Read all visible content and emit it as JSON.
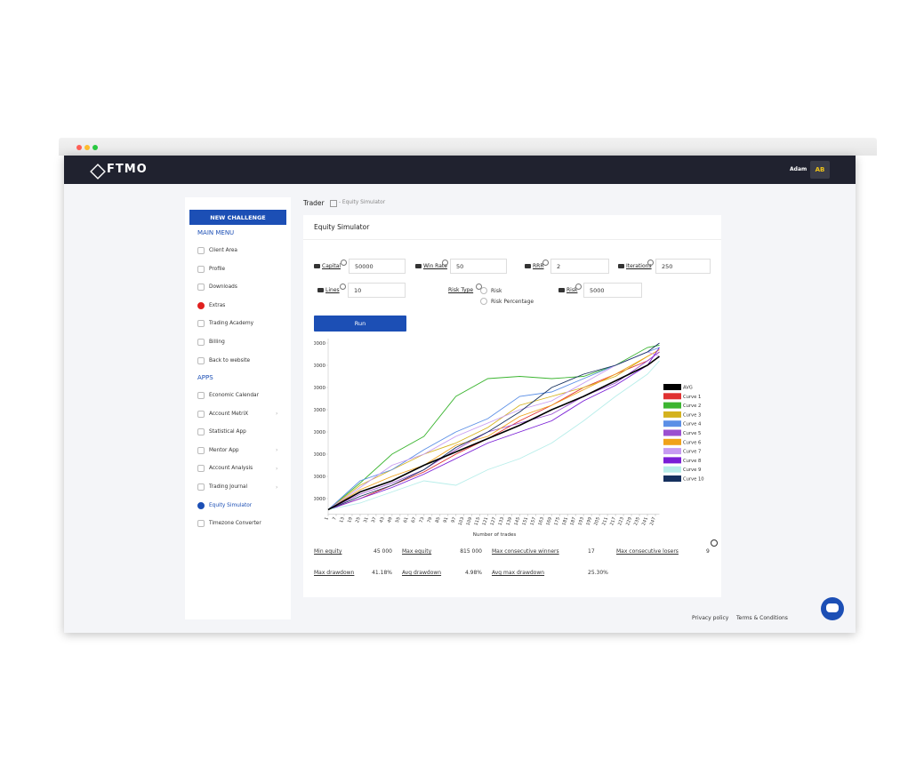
{
  "header": {
    "logo": "FTMO",
    "user": "Adam",
    "initials": "AB"
  },
  "sidebar": {
    "button": "NEW CHALLENGE",
    "main_menu": {
      "title": "MAIN MENU",
      "items": [
        "Client Area",
        "Profile",
        "Downloads",
        "Extras",
        "Trading Academy",
        "Billing",
        "Back to website"
      ]
    },
    "apps": {
      "title": "APPS",
      "items": [
        "Economic Calendar",
        "Account MetriX",
        "Statistical App",
        "Mentor App",
        "Account Analysis",
        "Trading Journal",
        "Equity Simulator",
        "Timezone Converter"
      ]
    }
  },
  "breadcrumb": [
    "Trader",
    "- Equity Simulator"
  ],
  "card": {
    "title": "Equity Simulator",
    "fields": [
      {
        "label": "Capital",
        "value": "50000"
      },
      {
        "label": "Win Rate",
        "value": "50"
      },
      {
        "label": "RRR",
        "value": "2"
      },
      {
        "label": "Iterations",
        "value": "250"
      },
      {
        "label": "Lines",
        "value": "10"
      },
      {
        "label": "Risk",
        "value": "5000"
      }
    ],
    "risk_type": {
      "label": "Risk Type",
      "options": [
        "Risk",
        "Risk Percentage"
      ]
    },
    "button": "Run",
    "stats": [
      [
        "Min equity",
        "45 000",
        "Max equity",
        "815 000",
        "Max consecutive winners",
        "17",
        "Max consecutive losers",
        "9"
      ],
      [
        "Max drawdown",
        "41.18%",
        "Avg drawdown",
        "4.98%",
        "Avg max drawdown",
        "25.30%"
      ]
    ]
  },
  "chart_data": {
    "type": "line",
    "x_label": "Number of trades",
    "grid": false,
    "x": [
      1,
      25,
      49,
      73,
      97,
      121,
      145,
      169,
      193,
      217,
      241,
      250
    ],
    "xlim": [
      1,
      250
    ],
    "xticks": [
      1,
      7,
      13,
      19,
      25,
      31,
      37,
      43,
      49,
      55,
      61,
      67,
      73,
      79,
      85,
      91,
      97,
      103,
      109,
      115,
      121,
      127,
      133,
      139,
      145,
      151,
      157,
      163,
      169,
      175,
      181,
      187,
      193,
      199,
      205,
      211,
      217,
      223,
      229,
      235,
      241,
      247
    ],
    "ylim": [
      30000,
      820000
    ],
    "yticks": [
      100000,
      200000,
      300000,
      400000,
      500000,
      600000,
      700000,
      800000
    ],
    "series": [
      {
        "name": "AVG",
        "color": "#000000",
        "values": [
          50000,
          130000,
          180000,
          250000,
          310000,
          370000,
          430000,
          500000,
          560000,
          630000,
          700000,
          740000
        ]
      },
      {
        "name": "Curve 1",
        "color": "#e03131",
        "values": [
          50000,
          100000,
          160000,
          220000,
          300000,
          370000,
          450000,
          520000,
          600000,
          660000,
          720000,
          760000
        ]
      },
      {
        "name": "Curve 2",
        "color": "#3cb531",
        "values": [
          50000,
          170000,
          300000,
          380000,
          560000,
          640000,
          650000,
          640000,
          650000,
          700000,
          780000,
          790000
        ]
      },
      {
        "name": "Curve 3",
        "color": "#d4b21e",
        "values": [
          50000,
          160000,
          230000,
          300000,
          350000,
          420000,
          520000,
          560000,
          600000,
          650000,
          740000,
          770000
        ]
      },
      {
        "name": "Curve 4",
        "color": "#5b8fe6",
        "values": [
          50000,
          180000,
          230000,
          320000,
          400000,
          460000,
          560000,
          580000,
          640000,
          700000,
          760000,
          780000
        ]
      },
      {
        "name": "Curve 5",
        "color": "#9b4fd0",
        "values": [
          50000,
          120000,
          170000,
          230000,
          320000,
          400000,
          440000,
          480000,
          560000,
          620000,
          720000,
          760000
        ]
      },
      {
        "name": "Curve 6",
        "color": "#f0a21a",
        "values": [
          50000,
          140000,
          200000,
          250000,
          340000,
          380000,
          470000,
          520000,
          590000,
          660000,
          740000,
          770000
        ]
      },
      {
        "name": "Curve 7",
        "color": "#c79bf2",
        "values": [
          50000,
          150000,
          250000,
          300000,
          380000,
          440000,
          500000,
          540000,
          620000,
          700000,
          760000,
          740000
        ]
      },
      {
        "name": "Curve 8",
        "color": "#7a1fd6",
        "values": [
          50000,
          100000,
          150000,
          210000,
          280000,
          350000,
          400000,
          450000,
          540000,
          610000,
          700000,
          780000
        ]
      },
      {
        "name": "Curve 9",
        "color": "#b8eeea",
        "values": [
          50000,
          80000,
          130000,
          180000,
          160000,
          230000,
          280000,
          350000,
          450000,
          560000,
          660000,
          720000
        ]
      },
      {
        "name": "Curve 10",
        "color": "#15305e",
        "values": [
          50000,
          110000,
          160000,
          230000,
          330000,
          400000,
          490000,
          600000,
          660000,
          700000,
          760000,
          800000
        ]
      }
    ]
  },
  "footer": [
    "Privacy policy",
    "Terms & Conditions"
  ]
}
